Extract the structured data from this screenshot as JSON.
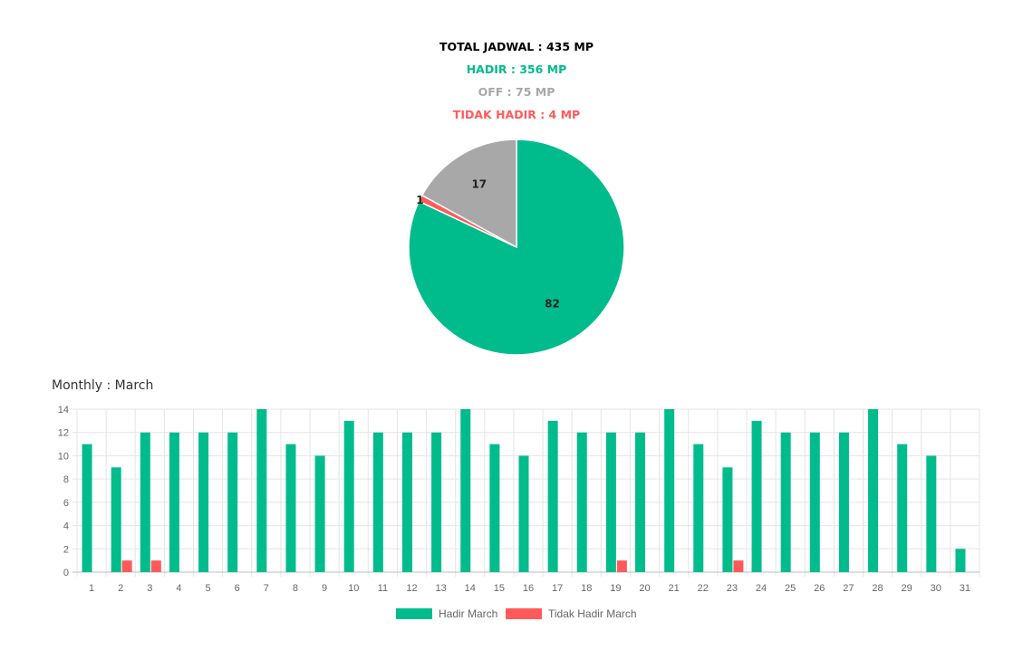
{
  "summary": {
    "total": "TOTAL JADWAL : 435 MP",
    "hadir": "HADIR : 356 MP",
    "off": "OFF : 75 MP",
    "tidak_hadir": "TIDAK HADIR : 4 MP"
  },
  "colors": {
    "hadir": "#00BC8C",
    "off": "#A8A8A8",
    "tidak_hadir": "#FF5A5A",
    "total": "#000000"
  },
  "monthly_title": "Monthly : March",
  "chart_data": [
    {
      "type": "pie",
      "labels": [
        "82",
        "1",
        "17"
      ],
      "slices": [
        {
          "value": 82,
          "color": "#00BC8C"
        },
        {
          "value": 1,
          "color": "#FF5A5A"
        },
        {
          "value": 17,
          "color": "#A8A8A8"
        }
      ]
    },
    {
      "type": "bar",
      "categories": [
        "1",
        "2",
        "3",
        "4",
        "5",
        "6",
        "7",
        "8",
        "9",
        "10",
        "11",
        "12",
        "13",
        "14",
        "15",
        "16",
        "17",
        "18",
        "19",
        "20",
        "21",
        "22",
        "23",
        "24",
        "25",
        "26",
        "27",
        "28",
        "29",
        "30",
        "31"
      ],
      "series": [
        {
          "name": "Hadir March",
          "color": "#00BC8C",
          "values": [
            11,
            9,
            12,
            12,
            12,
            12,
            14,
            11,
            10,
            13,
            12,
            12,
            12,
            14,
            11,
            10,
            13,
            12,
            12,
            12,
            14,
            11,
            9,
            13,
            12,
            12,
            12,
            14,
            11,
            10,
            2
          ]
        },
        {
          "name": "Tidak Hadir March",
          "color": "#FF5A5A",
          "values": [
            0,
            1,
            1,
            0,
            0,
            0,
            0,
            0,
            0,
            0,
            0,
            0,
            0,
            0,
            0,
            0,
            0,
            0,
            1,
            0,
            0,
            0,
            1,
            0,
            0,
            0,
            0,
            0,
            0,
            0,
            0
          ]
        }
      ],
      "yticks": [
        "0",
        "2",
        "4",
        "6",
        "8",
        "10",
        "12",
        "14"
      ],
      "ylim": [
        0,
        14
      ],
      "grid": true,
      "legend": "bottom"
    }
  ]
}
